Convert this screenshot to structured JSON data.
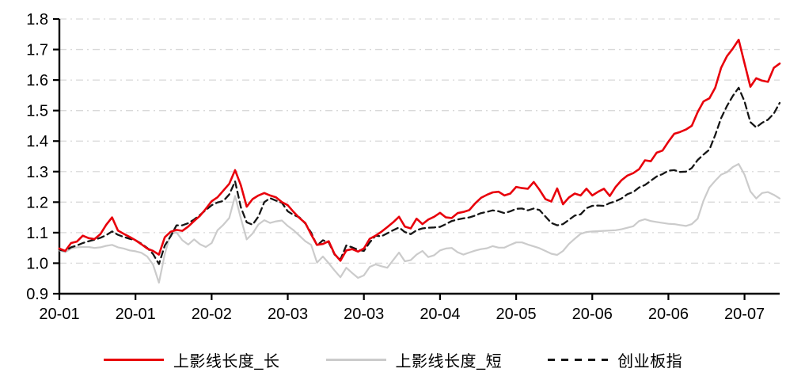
{
  "chart_data": {
    "type": "line",
    "title": "",
    "xlabel": "",
    "ylabel": "",
    "ylim": [
      0.9,
      1.8
    ],
    "y_tick_step": 0.1,
    "y_tick_labels": [
      "0.9",
      "1.0",
      "1.1",
      "1.2",
      "1.3",
      "1.4",
      "1.5",
      "1.6",
      "1.7",
      "1.8"
    ],
    "x_tick_labels": [
      "20-01",
      "20-01",
      "20-02",
      "20-03",
      "20-03",
      "20-04",
      "20-05",
      "20-06",
      "20-06",
      "20-07"
    ],
    "tick_every": 13,
    "grid": "horizontal dash-dot",
    "legend_position": "bottom-center",
    "axis_color": "#000000",
    "grid_color": "#d9d9d9",
    "series": [
      {
        "name": "上影线长度_长",
        "key": "long-upper-shadow",
        "color": "#e8000b",
        "style": "solid",
        "values": [
          1.048,
          1.04,
          1.066,
          1.071,
          1.09,
          1.082,
          1.079,
          1.095,
          1.126,
          1.15,
          1.107,
          1.096,
          1.086,
          1.075,
          1.062,
          1.048,
          1.04,
          1.028,
          1.085,
          1.103,
          1.109,
          1.106,
          1.12,
          1.138,
          1.155,
          1.178,
          1.203,
          1.216,
          1.238,
          1.26,
          1.305,
          1.255,
          1.185,
          1.21,
          1.222,
          1.23,
          1.222,
          1.216,
          1.2,
          1.19,
          1.168,
          1.148,
          1.132,
          1.094,
          1.06,
          1.063,
          1.072,
          1.03,
          1.008,
          1.042,
          1.046,
          1.038,
          1.048,
          1.08,
          1.09,
          1.103,
          1.118,
          1.134,
          1.152,
          1.12,
          1.114,
          1.146,
          1.128,
          1.143,
          1.152,
          1.165,
          1.15,
          1.148,
          1.164,
          1.168,
          1.174,
          1.196,
          1.214,
          1.224,
          1.232,
          1.234,
          1.222,
          1.228,
          1.25,
          1.246,
          1.244,
          1.266,
          1.24,
          1.21,
          1.202,
          1.245,
          1.193,
          1.215,
          1.228,
          1.222,
          1.244,
          1.222,
          1.234,
          1.244,
          1.22,
          1.25,
          1.272,
          1.287,
          1.295,
          1.308,
          1.337,
          1.334,
          1.362,
          1.369,
          1.398,
          1.424,
          1.43,
          1.438,
          1.45,
          1.495,
          1.53,
          1.54,
          1.575,
          1.64,
          1.678,
          1.703,
          1.732,
          1.655,
          1.578,
          1.606,
          1.598,
          1.594,
          1.64,
          1.654
        ]
      },
      {
        "name": "上影线长度_短",
        "key": "short-upper-shadow",
        "color": "#cbcbcb",
        "style": "solid",
        "values": [
          1.042,
          1.036,
          1.048,
          1.052,
          1.053,
          1.053,
          1.05,
          1.052,
          1.057,
          1.06,
          1.052,
          1.048,
          1.042,
          1.039,
          1.034,
          1.022,
          0.995,
          0.936,
          1.03,
          1.097,
          1.101,
          1.075,
          1.061,
          1.078,
          1.062,
          1.053,
          1.066,
          1.108,
          1.126,
          1.148,
          1.22,
          1.147,
          1.078,
          1.097,
          1.127,
          1.141,
          1.132,
          1.137,
          1.14,
          1.122,
          1.108,
          1.09,
          1.072,
          1.06,
          1.002,
          1.022,
          1.0,
          0.976,
          0.954,
          0.985,
          0.968,
          0.952,
          0.96,
          0.988,
          0.996,
          0.99,
          0.985,
          1.01,
          1.035,
          1.006,
          1.01,
          1.028,
          1.04,
          1.02,
          1.026,
          1.042,
          1.048,
          1.05,
          1.036,
          1.028,
          1.035,
          1.041,
          1.046,
          1.049,
          1.056,
          1.051,
          1.051,
          1.06,
          1.068,
          1.068,
          1.061,
          1.055,
          1.049,
          1.04,
          1.031,
          1.027,
          1.04,
          1.063,
          1.08,
          1.096,
          1.102,
          1.104,
          1.105,
          1.106,
          1.107,
          1.108,
          1.111,
          1.116,
          1.121,
          1.138,
          1.144,
          1.138,
          1.135,
          1.132,
          1.129,
          1.128,
          1.125,
          1.122,
          1.128,
          1.146,
          1.205,
          1.248,
          1.27,
          1.29,
          1.298,
          1.315,
          1.325,
          1.29,
          1.235,
          1.212,
          1.23,
          1.233,
          1.224,
          1.212
        ]
      },
      {
        "name": "创业板指",
        "key": "chinext-index",
        "color": "#161616",
        "style": "dashed",
        "values": [
          1.044,
          1.04,
          1.052,
          1.058,
          1.066,
          1.072,
          1.077,
          1.083,
          1.092,
          1.104,
          1.093,
          1.086,
          1.08,
          1.075,
          1.064,
          1.05,
          1.03,
          0.997,
          1.058,
          1.088,
          1.124,
          1.124,
          1.131,
          1.143,
          1.158,
          1.174,
          1.19,
          1.199,
          1.204,
          1.225,
          1.268,
          1.183,
          1.134,
          1.126,
          1.153,
          1.2,
          1.213,
          1.205,
          1.198,
          1.17,
          1.158,
          1.15,
          1.13,
          1.1,
          1.058,
          1.075,
          1.068,
          1.028,
          1.012,
          1.058,
          1.052,
          1.044,
          1.04,
          1.068,
          1.09,
          1.088,
          1.098,
          1.108,
          1.117,
          1.102,
          1.095,
          1.108,
          1.114,
          1.116,
          1.117,
          1.119,
          1.128,
          1.138,
          1.143,
          1.147,
          1.15,
          1.156,
          1.164,
          1.168,
          1.173,
          1.17,
          1.164,
          1.17,
          1.178,
          1.179,
          1.173,
          1.179,
          1.174,
          1.153,
          1.132,
          1.124,
          1.128,
          1.142,
          1.156,
          1.16,
          1.18,
          1.188,
          1.189,
          1.188,
          1.197,
          1.203,
          1.212,
          1.226,
          1.233,
          1.248,
          1.256,
          1.27,
          1.284,
          1.292,
          1.303,
          1.305,
          1.299,
          1.3,
          1.312,
          1.338,
          1.356,
          1.372,
          1.42,
          1.475,
          1.515,
          1.548,
          1.575,
          1.53,
          1.462,
          1.445,
          1.46,
          1.47,
          1.49,
          1.525
        ]
      }
    ]
  }
}
